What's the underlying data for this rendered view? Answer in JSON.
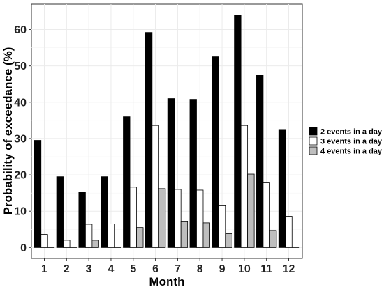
{
  "chart_data": {
    "type": "bar",
    "xlabel": "Month",
    "ylabel": "Probability of exceedance (%)",
    "categories": [
      "1",
      "2",
      "3",
      "4",
      "5",
      "6",
      "7",
      "8",
      "9",
      "10",
      "11",
      "12"
    ],
    "ylim": [
      -3,
      67
    ],
    "yticks": [
      0,
      10,
      20,
      30,
      40,
      50,
      60
    ],
    "grid": true,
    "legend_position": "right",
    "series": [
      {
        "name": "2 events in a day",
        "color": "#000000",
        "values": [
          29.5,
          19.5,
          15.2,
          19.5,
          36.0,
          59.2,
          41.0,
          40.8,
          52.5,
          64.0,
          47.5,
          32.5
        ]
      },
      {
        "name": "3 events in a day",
        "color": "#ffffff",
        "values": [
          3.6,
          2.0,
          6.4,
          6.5,
          16.6,
          33.6,
          16.0,
          15.8,
          11.5,
          33.6,
          17.8,
          8.6
        ]
      },
      {
        "name": "4 events in a day",
        "color": "#bebebe",
        "values": [
          0,
          0,
          2.0,
          0,
          5.5,
          16.2,
          7.1,
          6.8,
          3.8,
          20.2,
          4.7,
          0
        ]
      }
    ]
  }
}
